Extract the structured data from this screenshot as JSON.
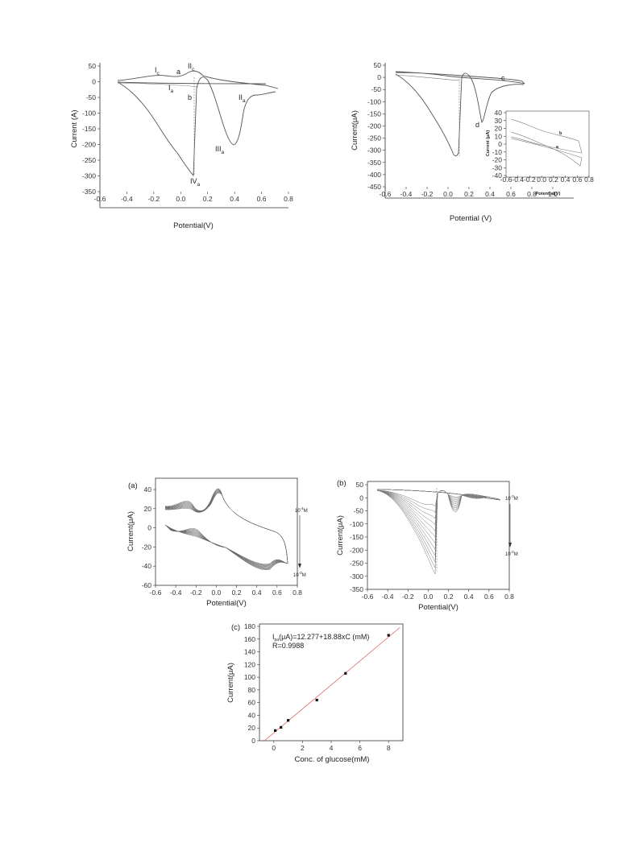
{
  "chart_data": [
    {
      "type": "line",
      "panel": "top-left",
      "xlabel": "Potential(V)",
      "ylabel": "Current (A)",
      "xlim": [
        -0.6,
        0.8
      ],
      "ylim": [
        -350,
        50
      ],
      "xticks": [
        "-0.6",
        "-0.4",
        "-0.2",
        "0.0",
        "0.2",
        "0.4",
        "0.6",
        "0.8"
      ],
      "yticks": [
        "50",
        "0",
        "-50",
        "-100",
        "-150",
        "-200",
        "-250",
        "-300",
        "-350"
      ],
      "series": [
        {
          "name": "a",
          "x": [
            -0.5,
            -0.2,
            -0.1,
            0.0,
            0.1,
            0.2,
            0.4,
            0.6,
            0.7
          ],
          "y": [
            12,
            20,
            18,
            14,
            30,
            20,
            5,
            -2,
            -15
          ]
        },
        {
          "name": "b",
          "x": [
            -0.5,
            -0.3,
            -0.1,
            0.05,
            0.09,
            0.12,
            0.2,
            0.28,
            0.35,
            0.45,
            0.6,
            0.7
          ],
          "y": [
            8,
            -40,
            -90,
            -180,
            -300,
            -30,
            -120,
            -200,
            -110,
            -40,
            -45,
            -25
          ]
        }
      ],
      "annotations": [
        "I",
        "c",
        "a",
        "II",
        "c",
        "I",
        "a",
        "b",
        "II",
        "a",
        "III",
        "a",
        "IV",
        "a"
      ]
    },
    {
      "type": "line",
      "panel": "top-right",
      "xlabel": "Potential (V)",
      "ylabel": "Current(μA)",
      "xlim": [
        -0.6,
        1.2
      ],
      "ylim": [
        -450,
        50
      ],
      "xticks": [
        "-0.6",
        "-0.4",
        "-0.2",
        "0.0",
        "0.2",
        "0.4",
        "0.6",
        "0.8",
        "1.0"
      ],
      "yticks": [
        "50",
        "0",
        "-50",
        "-100",
        "-150",
        "-200",
        "-250",
        "-300",
        "-350",
        "-400",
        "-450"
      ],
      "series": [
        {
          "name": "c",
          "x": [
            -0.5,
            -0.1,
            0.2,
            0.5,
            0.7
          ],
          "y": [
            20,
            15,
            5,
            0,
            -10
          ]
        },
        {
          "name": "d",
          "x": [
            -0.5,
            -0.2,
            0.0,
            0.09,
            0.15,
            0.25,
            0.35,
            0.5,
            0.7
          ],
          "y": [
            10,
            -80,
            -200,
            -300,
            10,
            -180,
            -60,
            -20,
            -10
          ]
        }
      ],
      "annotations": [
        "c",
        "d"
      ],
      "inset": {
        "xlabel": "Potential(V)",
        "ylabel": "Current (μA)",
        "xlim": [
          -0.6,
          0.8
        ],
        "ylim": [
          -40,
          40
        ],
        "xticks": [
          "-0.6",
          "-0.4",
          "-0.2",
          "0.0",
          "0.2",
          "0.4",
          "0.6",
          "0.8"
        ],
        "yticks": [
          "40",
          "30",
          "20",
          "10",
          "0",
          "-10",
          "-20",
          "-30",
          "-40"
        ],
        "series_labels": [
          "b",
          "a"
        ]
      }
    },
    {
      "type": "line",
      "panel": "(a)",
      "xlabel": "Potential(V)",
      "ylabel": "Current(μA)",
      "xlim": [
        -0.6,
        0.8
      ],
      "ylim": [
        -60,
        40
      ],
      "xticks": [
        "-0.6",
        "-0.4",
        "-0.2",
        "0.0",
        "0.2",
        "0.4",
        "0.6",
        "0.8"
      ],
      "yticks": [
        "40",
        "20",
        "0",
        "-20",
        "-40",
        "-60"
      ],
      "conc_top": "10",
      "conc_top_exp": "-4",
      "conc_bottom": "10",
      "conc_bottom_exp": "-3",
      "conc_unit": "M"
    },
    {
      "type": "line",
      "panel": "(b)",
      "xlabel": "Potential(V)",
      "ylabel": "Current(μA)",
      "xlim": [
        -0.6,
        0.8
      ],
      "ylim": [
        -350,
        50
      ],
      "xticks": [
        "-0.6",
        "-0.4",
        "-0.2",
        "0.0",
        "0.2",
        "0.4",
        "0.6",
        "0.8"
      ],
      "yticks": [
        "50",
        "0",
        "-50",
        "-100",
        "-150",
        "-200",
        "-250",
        "-300",
        "-350"
      ],
      "conc_top": "10",
      "conc_top_exp": "-3",
      "conc_bottom": "10",
      "conc_bottom_exp": "-2",
      "conc_unit": "M"
    },
    {
      "type": "scatter",
      "panel": "(c)",
      "xlabel": "Conc. of glucose(mM)",
      "ylabel": "Current(μA)",
      "xlim": [
        -1,
        9
      ],
      "ylim": [
        0,
        180
      ],
      "xticks": [
        "0",
        "2",
        "4",
        "6",
        "8"
      ],
      "yticks": [
        "180",
        "160",
        "140",
        "120",
        "100",
        "80",
        "60",
        "40",
        "20",
        "0"
      ],
      "x": [
        0.1,
        0.5,
        1.0,
        3.0,
        5.0,
        8.0
      ],
      "y": [
        16,
        21,
        32,
        64,
        106,
        166
      ],
      "fit": {
        "intercept": 12.277,
        "slope": 18.88,
        "color": "#e06060"
      },
      "equation_pre": "I",
      "equation_sub": "pa",
      "equation_post": "(μA)=12.277+18.88xC (mM)",
      "r_text": "R=0.9988"
    }
  ]
}
